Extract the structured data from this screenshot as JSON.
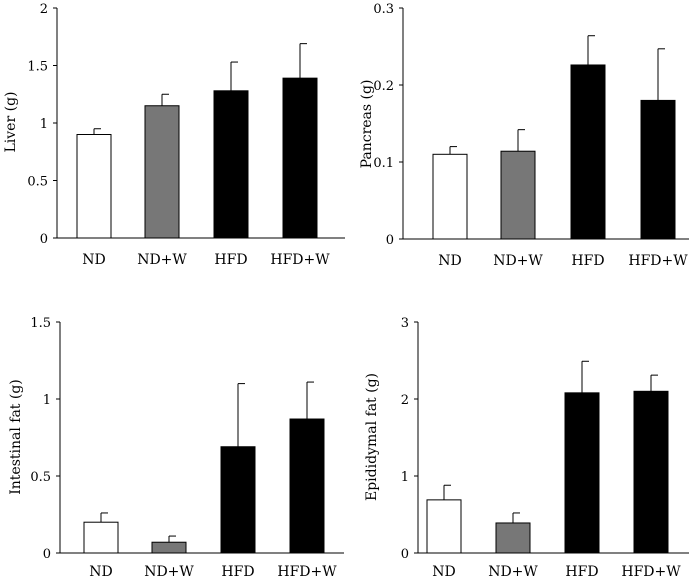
{
  "chart_data": [
    {
      "type": "bar",
      "ylabel": "Liver (g)",
      "categories": [
        "ND",
        "ND+W",
        "HFD",
        "HFD+W"
      ],
      "values": [
        0.9,
        1.15,
        1.28,
        1.39
      ],
      "errors": [
        0.05,
        0.1,
        0.25,
        0.3
      ],
      "bar_colors": [
        "#ffffff",
        "#777777",
        "#000000",
        "#000000"
      ],
      "ylim": [
        0,
        2
      ],
      "yticks": [
        0,
        0.5,
        1,
        1.5,
        2
      ],
      "ytick_labels": [
        "0",
        "0.5",
        "1",
        "1.5",
        "2"
      ]
    },
    {
      "type": "bar",
      "ylabel": "Pancreas (g)",
      "categories": [
        "ND",
        "ND+W",
        "HFD",
        "HFD+W"
      ],
      "values": [
        0.11,
        0.114,
        0.226,
        0.18
      ],
      "errors": [
        0.01,
        0.028,
        0.038,
        0.067
      ],
      "bar_colors": [
        "#ffffff",
        "#777777",
        "#000000",
        "#000000"
      ],
      "ylim": [
        0,
        0.3
      ],
      "yticks": [
        0,
        0.1,
        0.2,
        0.3
      ],
      "ytick_labels": [
        "0",
        "0.1",
        "0.2",
        "0.3"
      ]
    },
    {
      "type": "bar",
      "ylabel": "Intestinal fat (g)",
      "categories": [
        "ND",
        "ND+W",
        "HFD",
        "HFD+W"
      ],
      "values": [
        0.2,
        0.07,
        0.69,
        0.87
      ],
      "errors": [
        0.06,
        0.04,
        0.41,
        0.24
      ],
      "bar_colors": [
        "#ffffff",
        "#777777",
        "#000000",
        "#000000"
      ],
      "ylim": [
        0,
        1.5
      ],
      "yticks": [
        0,
        0.5,
        1,
        1.5
      ],
      "ytick_labels": [
        "0",
        "0.5",
        "1",
        "1.5"
      ]
    },
    {
      "type": "bar",
      "ylabel": "Epididymal fat (g)",
      "categories": [
        "ND",
        "ND+W",
        "HFD",
        "HFD+W"
      ],
      "values": [
        0.69,
        0.39,
        2.08,
        2.1
      ],
      "errors": [
        0.19,
        0.13,
        0.41,
        0.21
      ],
      "bar_colors": [
        "#ffffff",
        "#777777",
        "#000000",
        "#000000"
      ],
      "ylim": [
        0,
        3
      ],
      "yticks": [
        0,
        1,
        2,
        3
      ],
      "ytick_labels": [
        "0",
        "1",
        "2",
        "3"
      ]
    }
  ]
}
